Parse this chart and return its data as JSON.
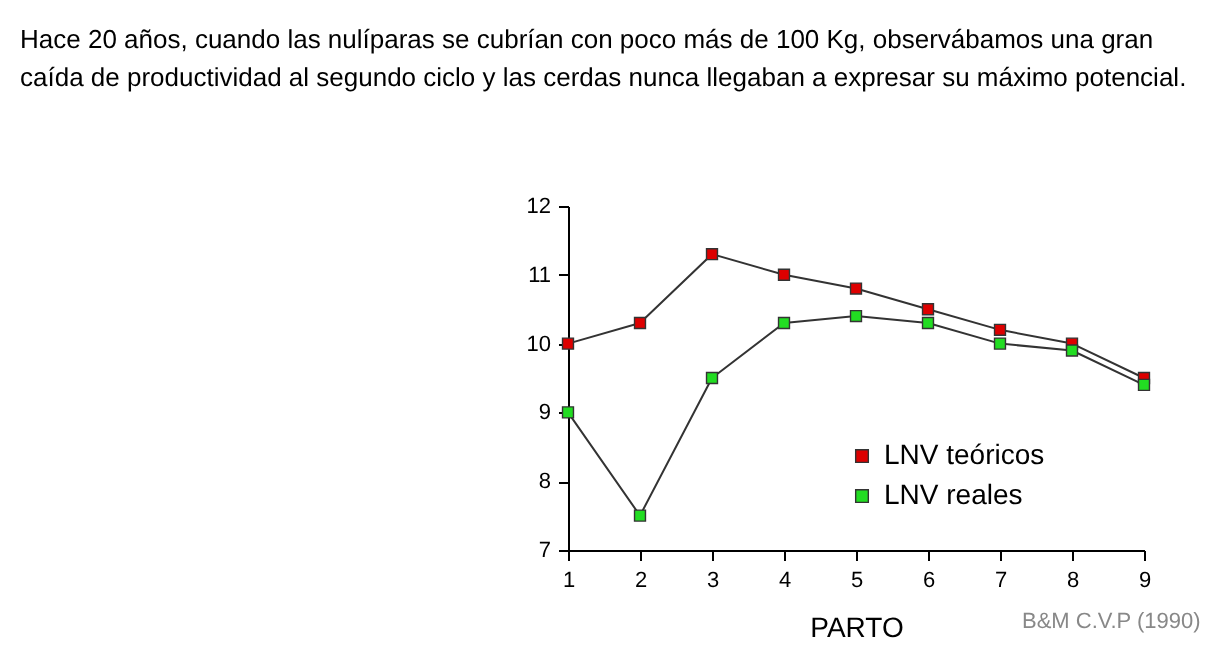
{
  "chart_data": {
    "type": "line",
    "title": "Hace 20 años, cuando las nulíparas se cubrían con poco más de 100 Kg, observábamos una gran caída de productividad al segundo ciclo y las cerdas nunca llegaban a expresar su máximo potencial.",
    "xlabel": "PARTO",
    "annotations": [
      "B&M C.V.P (1990)"
    ],
    "x": [
      1,
      2,
      3,
      4,
      5,
      6,
      7,
      8,
      9
    ],
    "series": [
      {
        "name": "LNV teóricos",
        "color": "#dd0000",
        "values": [
          10,
          10.3,
          11.3,
          11,
          10.8,
          10.5,
          10.2,
          10,
          9.5
        ]
      },
      {
        "name": "LNV reales",
        "color": "#22dd22",
        "values": [
          9,
          7.5,
          9.5,
          10.3,
          10.4,
          10.3,
          10,
          9.9,
          9.4
        ]
      }
    ],
    "xlim": [
      1,
      9
    ],
    "xticks": [
      1,
      2,
      3,
      4,
      5,
      6,
      7,
      8,
      9
    ],
    "ylim": [
      7,
      12
    ],
    "yticks": [
      7,
      8,
      9,
      10,
      11,
      12
    ],
    "grid": false,
    "legend": "bottom right",
    "marker": "square",
    "line_style": "solid"
  }
}
